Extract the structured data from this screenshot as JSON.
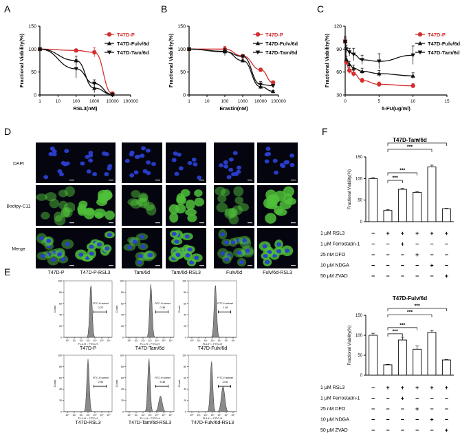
{
  "panel_letters": {
    "A": "A",
    "B": "B",
    "C": "C",
    "D": "D",
    "E": "E",
    "F": "F"
  },
  "colors": {
    "parent": "#d32f2f",
    "fulv": "#111111",
    "tam": "#111111",
    "bar": "#ffffff",
    "micro_bg": "#050510",
    "dapi": "#2a3fd0",
    "bodipy": "#4fbf3a",
    "flow_fill": "#8a8a8a"
  },
  "chart_data": [
    {
      "id": "A",
      "type": "line",
      "xscale": "log",
      "xlabel": "RSL3(nM)",
      "ylabel": "Fractional Viability(%)",
      "xlim": [
        1,
        100000
      ],
      "ylim": [
        0,
        150
      ],
      "xticks": [
        "1",
        "10",
        "100",
        "1000",
        "10000",
        "100000"
      ],
      "yticks": [
        "0",
        "50",
        "100",
        "150"
      ],
      "legend_position": "right",
      "series": [
        {
          "name": "T47D-P",
          "marker": "circle",
          "x": [
            1,
            100,
            1000,
            10000
          ],
          "y": [
            100,
            97,
            93,
            3
          ],
          "err": [
            0,
            3,
            10,
            2
          ]
        },
        {
          "name": "T47D-Fulv/6d",
          "marker": "triangle-up",
          "x": [
            1,
            100,
            1000,
            10000
          ],
          "y": [
            100,
            75,
            15,
            1
          ],
          "err": [
            0,
            10,
            10,
            1
          ]
        },
        {
          "name": "T47D-Tam/6d",
          "marker": "triangle-down",
          "x": [
            1,
            100,
            1000,
            10000
          ],
          "y": [
            100,
            57,
            25,
            1
          ],
          "err": [
            0,
            20,
            8,
            1
          ]
        }
      ]
    },
    {
      "id": "B",
      "type": "line",
      "xscale": "log",
      "xlabel": "Erastin(nM)",
      "ylabel": "Fractional Viability(%)",
      "xlim": [
        1,
        100000
      ],
      "ylim": [
        0,
        150
      ],
      "xticks": [
        "1",
        "10",
        "100",
        "1000",
        "10000",
        "100000"
      ],
      "yticks": [
        "0",
        "50",
        "100",
        "150"
      ],
      "legend_position": "right",
      "series": [
        {
          "name": "T47D-P",
          "marker": "circle",
          "x": [
            1,
            100,
            1000,
            10000,
            50000
          ],
          "y": [
            100,
            100,
            85,
            55,
            27
          ],
          "err": [
            0,
            6,
            3,
            3,
            4
          ]
        },
        {
          "name": "T47D-Fulv/6d",
          "marker": "triangle-up",
          "x": [
            1,
            100,
            1000,
            10000,
            50000
          ],
          "y": [
            100,
            95,
            75,
            18,
            8
          ],
          "err": [
            0,
            5,
            3,
            5,
            2
          ]
        },
        {
          "name": "T47D-Tam/6d",
          "marker": "triangle-down",
          "x": [
            1,
            100,
            1000,
            10000,
            50000
          ],
          "y": [
            100,
            94,
            84,
            23,
            20
          ],
          "err": [
            0,
            8,
            3,
            6,
            3
          ]
        }
      ]
    },
    {
      "id": "C",
      "type": "line",
      "xscale": "linear",
      "xlabel": "5-FU(ug/ml)",
      "ylabel": "Fractional Viability(%)",
      "xlim": [
        0,
        15
      ],
      "ylim": [
        30,
        120
      ],
      "xticks": [
        "0",
        "5",
        "10",
        "15"
      ],
      "yticks": [
        "30",
        "60",
        "90",
        "120"
      ],
      "legend_position": "right",
      "series": [
        {
          "name": "T47D-P",
          "marker": "circle",
          "x": [
            0,
            0.156,
            0.625,
            1.25,
            2.5,
            5,
            10
          ],
          "y": [
            100,
            73,
            62,
            58,
            49,
            44,
            42
          ],
          "err": [
            5,
            4,
            4,
            4,
            3,
            3,
            3
          ]
        },
        {
          "name": "T47D-Fulv/6d",
          "marker": "triangle-up",
          "x": [
            0,
            0.156,
            0.625,
            1.25,
            2.5,
            5,
            10
          ],
          "y": [
            100,
            77,
            70,
            65,
            61,
            58,
            55
          ],
          "err": [
            4,
            4,
            4,
            4,
            4,
            4,
            4
          ]
        },
        {
          "name": "T47D-Tam/6d",
          "marker": "triangle-down",
          "x": [
            0,
            0.156,
            0.625,
            1.25,
            2.5,
            5,
            10
          ],
          "y": [
            100,
            90,
            86,
            83,
            76,
            74,
            82
          ],
          "err": [
            6,
            5,
            5,
            8,
            6,
            10,
            12
          ]
        }
      ]
    },
    {
      "id": "F1",
      "type": "bar",
      "title": "T47D-Tam/6d",
      "ylabel": "Fractional Viability(%)",
      "ylim": [
        0,
        150
      ],
      "yticks": [
        "0",
        "50",
        "100",
        "150"
      ],
      "values": [
        100,
        26,
        75,
        68,
        127,
        30
      ],
      "err": [
        2,
        2,
        2,
        2,
        4,
        1
      ],
      "sig": [
        {
          "from": 1,
          "to": 2,
          "label": "***"
        },
        {
          "from": 1,
          "to": 3,
          "label": "***"
        },
        {
          "from": 1,
          "to": 4,
          "label": "***"
        },
        {
          "from": 1,
          "to": 5,
          "label": "*"
        }
      ]
    },
    {
      "id": "F2",
      "type": "bar",
      "title": "T47D-Fulv/6d",
      "ylabel": "Fractional Viability(%)",
      "ylim": [
        0,
        150
      ],
      "yticks": [
        "0",
        "50",
        "100",
        "150"
      ],
      "values": [
        100,
        26,
        88,
        65,
        107,
        38
      ],
      "err": [
        5,
        1,
        7,
        8,
        5,
        1
      ],
      "sig": [
        {
          "from": 1,
          "to": 2,
          "label": "***"
        },
        {
          "from": 1,
          "to": 3,
          "label": "***"
        },
        {
          "from": 1,
          "to": 4,
          "label": "***"
        },
        {
          "from": 1,
          "to": 5,
          "label": "***"
        }
      ]
    }
  ],
  "treatment_table": {
    "rows": [
      "1 μM RSL3",
      "1 μM Ferrostatin-1",
      "25 nM DFO",
      "10 μM NDGA",
      "50 μM ZVAD"
    ],
    "signs": [
      [
        "−",
        "+",
        "+",
        "+",
        "+",
        "+"
      ],
      [
        "−",
        "−",
        "+",
        "−",
        "−",
        "−"
      ],
      [
        "−",
        "−",
        "−",
        "+",
        "−",
        "−"
      ],
      [
        "−",
        "−",
        "−",
        "−",
        "+",
        "−"
      ],
      [
        "−",
        "−",
        "−",
        "−",
        "−",
        "+"
      ]
    ]
  },
  "micrographs": {
    "row_labels": [
      "DAPI",
      "Bodipy-C11",
      "Merge"
    ],
    "col_labels": [
      "T47D-P",
      "T47D-P-RSL3",
      "Tam/6d",
      "Tam/6d-RSL3",
      "Fulv/6d",
      "Fulv/6d-RSL3"
    ]
  },
  "flow": {
    "panels": [
      {
        "label": "T47D-P",
        "gate_label": "FITC-H subset",
        "gate_value": "0.22"
      },
      {
        "label": "T47D-Tam/6d",
        "gate_label": "FITC-H subset",
        "gate_value": "0.38"
      },
      {
        "label": "T47D-Fulv/6d",
        "gate_label": "FITC-H subset",
        "gate_value": "1.18"
      },
      {
        "label": "T47D-RSL3",
        "gate_label": "FITC-H subset",
        "gate_value": "2.53"
      },
      {
        "label": "T47D-Tam/6d-RSL3",
        "gate_label": "FITC-H subset",
        "gate_value": "8.36"
      },
      {
        "label": "T47D-Fulv/6d-RSL3",
        "gate_label": "FITC-H subset",
        "gate_value": "24.8"
      }
    ],
    "ylabel": "Count",
    "xlabel": "FL1-H :: FITC-H",
    "yticks": [
      "0",
      "20",
      "40",
      "60",
      "80",
      "100"
    ],
    "xticks": [
      "10⁰",
      "10¹",
      "10²",
      "10³",
      "10⁴",
      "10⁵",
      "10⁶"
    ]
  }
}
